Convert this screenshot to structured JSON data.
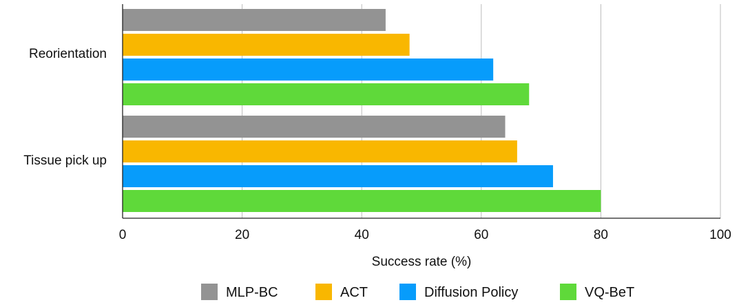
{
  "chart_data": {
    "type": "bar",
    "orientation": "horizontal",
    "title": "",
    "xlabel": "Success rate (%)",
    "ylabel": "",
    "xlim": [
      0,
      100
    ],
    "xticks": [
      0,
      20,
      40,
      60,
      80,
      100
    ],
    "grid": "vertical",
    "legend_position": "bottom",
    "categories": [
      "Reorientation",
      "Tissue pick up"
    ],
    "series": [
      {
        "name": "MLP-BC",
        "color": "#939393",
        "values": [
          44,
          64
        ]
      },
      {
        "name": "ACT",
        "color": "#F9B700",
        "values": [
          48,
          66
        ]
      },
      {
        "name": "Diffusion Policy",
        "color": "#079CFB",
        "values": [
          62,
          72
        ]
      },
      {
        "name": "VQ-BeT",
        "color": "#5FD93A",
        "values": [
          68,
          80
        ]
      }
    ]
  }
}
